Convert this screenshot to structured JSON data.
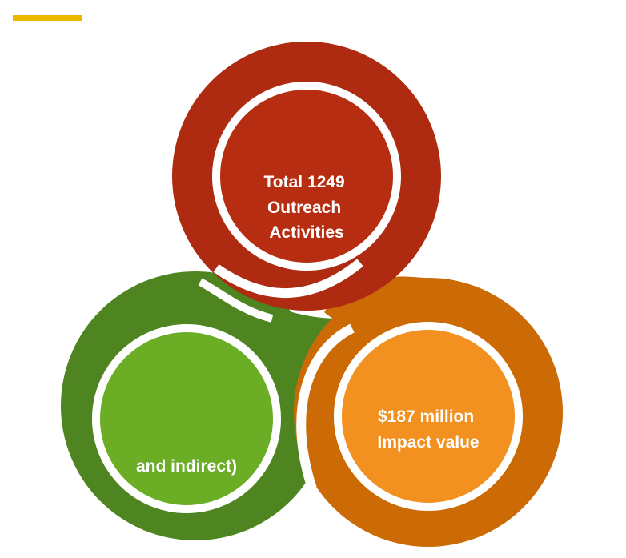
{
  "colors": {
    "accent_bar": "#F0B700",
    "red_ring": "#AE2A10",
    "red_inner": "#B72D12",
    "green_ring": "#4E8520",
    "green_inner": "#6BAE26",
    "orange_ring": "#CC6B05",
    "orange_inner": "#F2911F",
    "separator": "#FFFFFF",
    "text": "#FFFFFF"
  },
  "circles": {
    "top": {
      "lines": [
        "Total 1249",
        "Outreach",
        "Activities"
      ]
    },
    "left": {
      "lines": [
        "",
        "and indirect)"
      ]
    },
    "right": {
      "lines": [
        "$187 million",
        "Impact value"
      ]
    }
  }
}
